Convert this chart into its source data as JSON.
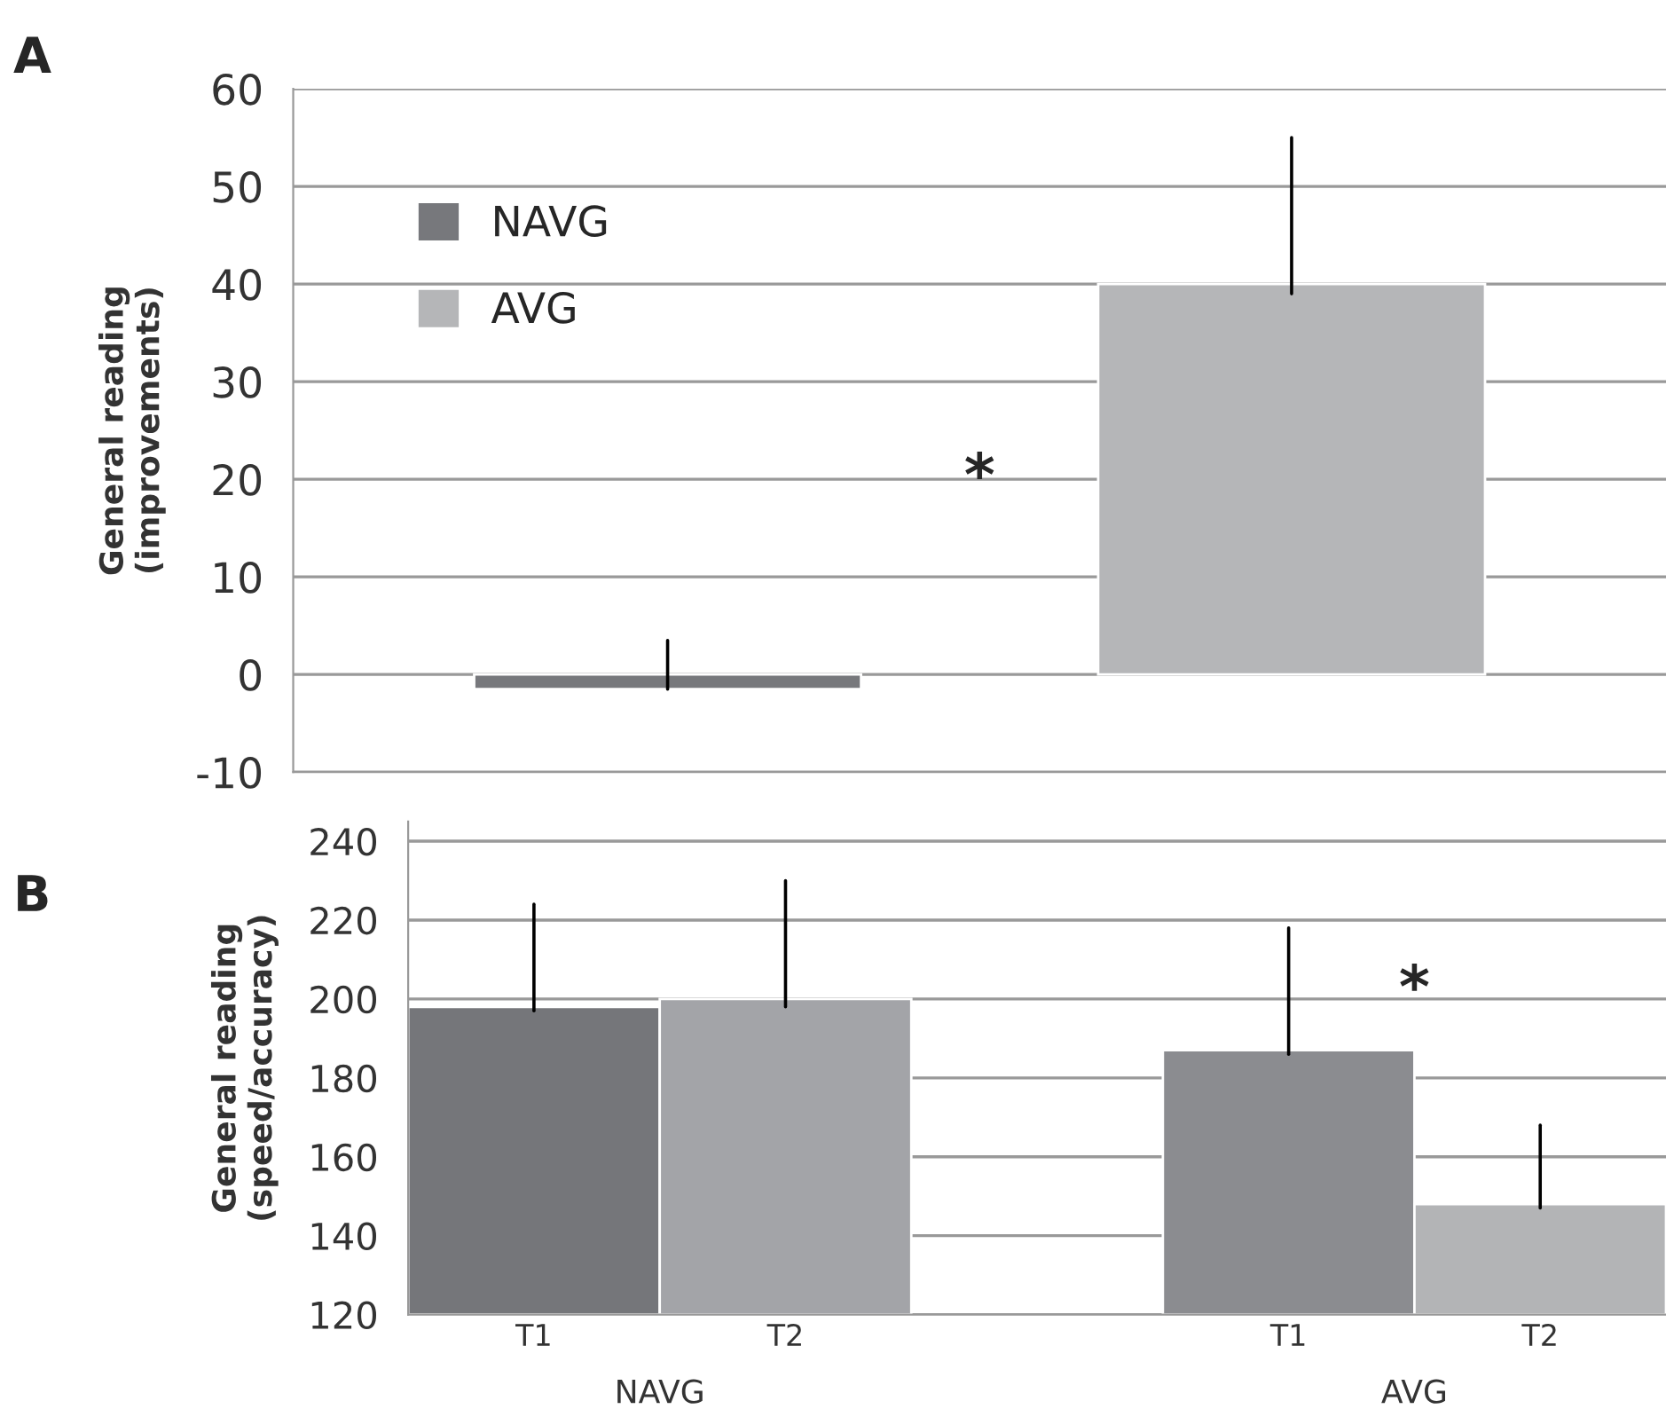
{
  "chart_data": [
    {
      "type": "bar",
      "title": "A",
      "ylabel": "General reading\n(improvements)",
      "categories": [
        null,
        null
      ],
      "series": [
        {
          "name": "NAVG",
          "color": "#77787c",
          "values": [
            -1.5,
            null
          ],
          "errors": [
            [
              -1.5,
              3.5
            ],
            null
          ]
        },
        {
          "name": "AVG",
          "color": "#b5b6b8",
          "values": [
            null,
            40
          ],
          "errors": [
            null,
            [
              39,
              55
            ]
          ]
        }
      ],
      "ylim": [
        -10,
        60
      ],
      "yticks": [
        -10,
        0,
        10,
        20,
        30,
        40,
        50,
        60
      ],
      "grid": "y",
      "legend": "top left",
      "annotations": [
        "*"
      ]
    },
    {
      "type": "bar",
      "title": "B",
      "ylabel": "General reading\n(speed/accuracy)",
      "categories": [
        "T1",
        "T2",
        null,
        "T1",
        "T2"
      ],
      "values": [
        198,
        200,
        null,
        187,
        148
      ],
      "colors": [
        "#75767a",
        "#a3a4a8",
        "#ffffff",
        "#8b8c90",
        "#b3b4b6"
      ],
      "errors": [
        [
          197,
          224
        ],
        [
          198,
          230
        ],
        null,
        [
          186,
          218
        ],
        [
          147,
          168
        ]
      ],
      "ylim": [
        120,
        245
      ],
      "yticks": [
        120,
        140,
        160,
        180,
        200,
        220,
        240
      ],
      "grid": "y",
      "annotations": [
        "*",
        "NAVG",
        "AVG"
      ]
    }
  ]
}
